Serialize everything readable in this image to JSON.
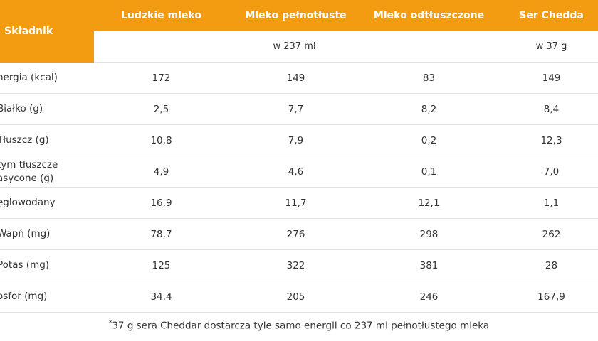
{
  "table": {
    "header": {
      "ingredient_label": "Składnik",
      "columns": [
        "Ludzkie mleko",
        "Mleko pełnotłuste",
        "Mleko odtłuszczone",
        "Ser Chedda"
      ]
    },
    "units": {
      "milk_unit": "w 237 ml",
      "cheese_unit": "w 37 g"
    },
    "rows": [
      {
        "label": "nergia (kcal)",
        "values": [
          "172",
          "149",
          "83",
          "149"
        ]
      },
      {
        "label": " Białko (g)",
        "values": [
          "2,5",
          "7,7",
          "8,2",
          "8,4"
        ]
      },
      {
        "label": "Tłuszcz (g)",
        "values": [
          "10,8",
          "7,9",
          "0,2",
          "12,3"
        ]
      },
      {
        "label": " tym tłuszcze\nasycone (g)",
        "values": [
          "4,9",
          "4,6",
          "0,1",
          "7,0"
        ]
      },
      {
        "label": "ęglowodany",
        "values": [
          "16,9",
          "11,7",
          "12,1",
          "1,1"
        ]
      },
      {
        "label": "Wapń (mg)",
        "values": [
          "78,7",
          "276",
          "298",
          "262"
        ]
      },
      {
        "label": "Potas (mg)",
        "values": [
          "125",
          "322",
          "381",
          "28"
        ]
      },
      {
        "label": "osfor (mg)",
        "values": [
          "34,4",
          "205",
          "246",
          "167,9"
        ]
      }
    ]
  },
  "footnote": {
    "marker": "*",
    "text": "37 g sera Cheddar dostarcza tyle samo energii co 237 ml pełnotłustego mleka"
  }
}
